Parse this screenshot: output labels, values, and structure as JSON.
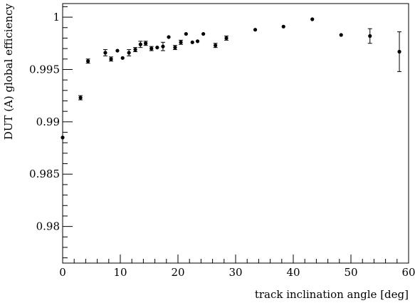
{
  "chart_data": {
    "type": "scatter",
    "title": "",
    "xlabel": "track inclination angle [deg]",
    "ylabel": "DUT (A) global efficiency",
    "xlim": [
      0,
      60
    ],
    "ylim": [
      0.9765,
      1.0013
    ],
    "grid": false,
    "x_ticks": [
      0,
      10,
      20,
      30,
      40,
      50,
      60
    ],
    "x_tick_labels": [
      "0",
      "10",
      "20",
      "30",
      "40",
      "50",
      "60"
    ],
    "y_ticks": [
      0.98,
      0.985,
      0.99,
      0.995,
      1.0
    ],
    "y_tick_labels": [
      "0.98",
      "0.985",
      "0.99",
      "0.995",
      "1"
    ],
    "series": [
      {
        "marker": "filled-circle",
        "color": "#000000",
        "points": [
          {
            "x": 0.0,
            "y": 0.9885,
            "err": 0.0
          },
          {
            "x": 3.1,
            "y": 0.9923,
            "err": 0.0002
          },
          {
            "x": 4.4,
            "y": 0.9958,
            "err": 0.0002
          },
          {
            "x": 7.4,
            "y": 0.9966,
            "err": 0.0003
          },
          {
            "x": 8.4,
            "y": 0.996,
            "err": 0.0002
          },
          {
            "x": 9.5,
            "y": 0.9968,
            "err": 0.0
          },
          {
            "x": 10.4,
            "y": 0.9961,
            "err": 0.0
          },
          {
            "x": 11.5,
            "y": 0.9966,
            "err": 0.0003
          },
          {
            "x": 12.6,
            "y": 0.9969,
            "err": 0.0002
          },
          {
            "x": 13.5,
            "y": 0.9974,
            "err": 0.0003
          },
          {
            "x": 14.4,
            "y": 0.9975,
            "err": 0.0002
          },
          {
            "x": 15.4,
            "y": 0.997,
            "err": 0.0002
          },
          {
            "x": 16.4,
            "y": 0.9971,
            "err": 0.0
          },
          {
            "x": 17.4,
            "y": 0.9972,
            "err": 0.0004
          },
          {
            "x": 18.4,
            "y": 0.9981,
            "err": 0.0
          },
          {
            "x": 19.5,
            "y": 0.9971,
            "err": 0.0002
          },
          {
            "x": 20.5,
            "y": 0.9976,
            "err": 0.0002
          },
          {
            "x": 21.4,
            "y": 0.9984,
            "err": 0.0
          },
          {
            "x": 22.5,
            "y": 0.9976,
            "err": 0.0
          },
          {
            "x": 23.4,
            "y": 0.9977,
            "err": 0.0
          },
          {
            "x": 24.4,
            "y": 0.9984,
            "err": 0.0
          },
          {
            "x": 26.5,
            "y": 0.9973,
            "err": 0.0002
          },
          {
            "x": 28.4,
            "y": 0.998,
            "err": 0.0002
          },
          {
            "x": 33.4,
            "y": 0.9988,
            "err": 0.0
          },
          {
            "x": 38.3,
            "y": 0.9991,
            "err": 0.0
          },
          {
            "x": 43.3,
            "y": 0.9998,
            "err": 0.0
          },
          {
            "x": 48.3,
            "y": 0.9983,
            "err": 0.0
          },
          {
            "x": 53.3,
            "y": 0.9982,
            "err": 0.0007
          },
          {
            "x": 58.4,
            "y": 0.9967,
            "err": 0.0019
          }
        ]
      }
    ]
  }
}
